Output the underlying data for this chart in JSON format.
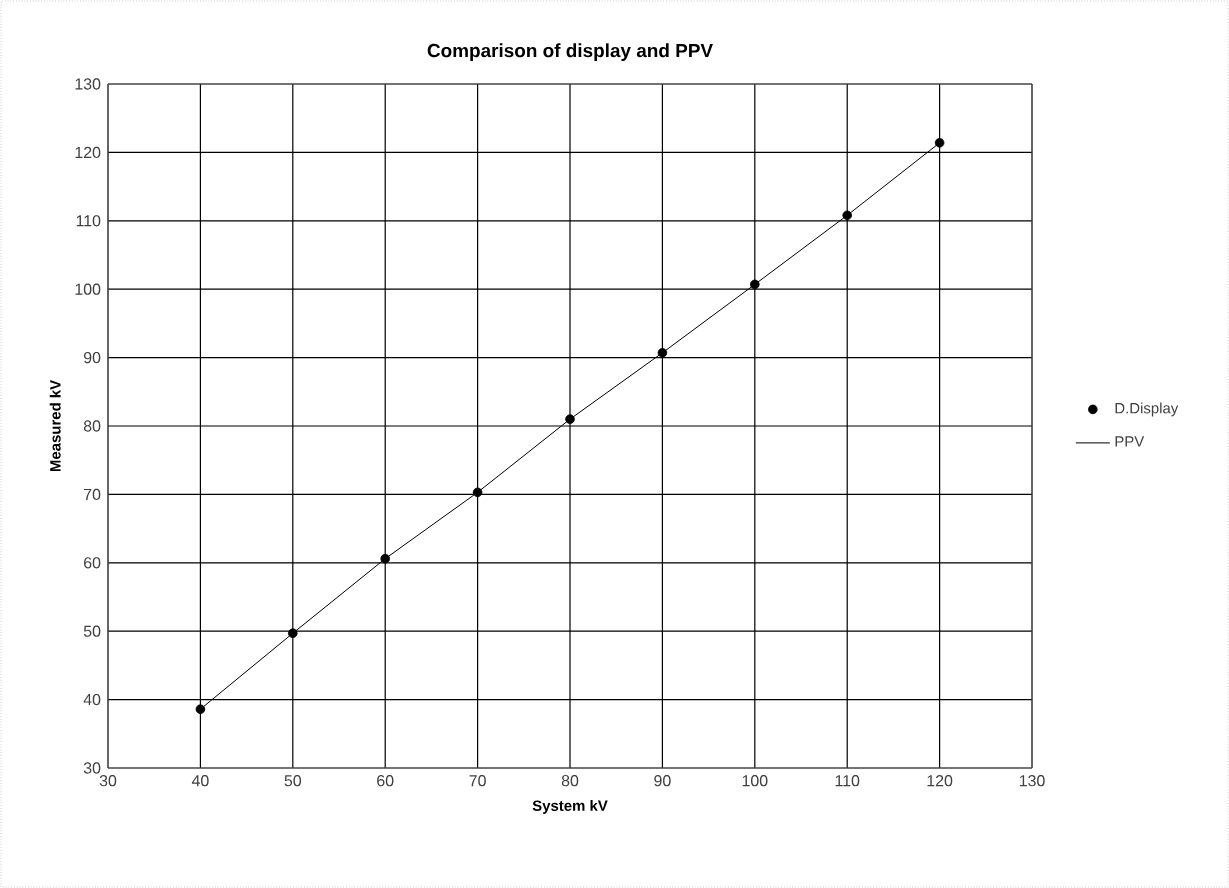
{
  "chart_data": {
    "type": "scatter",
    "title": "Comparison of display and PPV",
    "xlabel": "System kV",
    "ylabel": "Measured kV",
    "x": [
      40,
      50,
      60,
      70,
      80,
      90,
      100,
      110,
      120
    ],
    "series": [
      {
        "name": "D.Display",
        "marker": "circle",
        "color": "#000000",
        "values": [
          38.6,
          49.7,
          60.6,
          70.3,
          81.0,
          90.7,
          100.7,
          110.8,
          121.4
        ]
      },
      {
        "name": "PPV",
        "type": "line",
        "marker": "none",
        "color": "#000000",
        "values": [
          38.6,
          49.7,
          60.6,
          70.3,
          81.0,
          90.7,
          100.7,
          110.8,
          121.4
        ]
      }
    ],
    "xlim": [
      30,
      130
    ],
    "ylim": [
      30,
      130
    ],
    "xticks": [
      30,
      40,
      50,
      60,
      70,
      80,
      90,
      100,
      110,
      120,
      130
    ],
    "yticks": [
      30,
      40,
      50,
      60,
      70,
      80,
      90,
      100,
      110,
      120,
      130
    ],
    "grid": true,
    "legend": "right"
  }
}
